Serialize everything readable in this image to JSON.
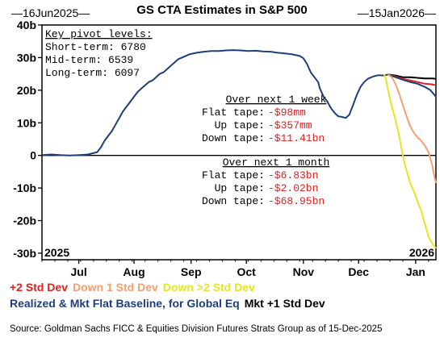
{
  "chart_data": {
    "type": "line",
    "title": "GS CTA Estimates in S&P 500",
    "start_label": "—16Jun2025—",
    "end_label": "—15Jan2026—",
    "ylim": [
      -32,
      40
    ],
    "y_ticks": [
      {
        "value": 40,
        "label": "40b"
      },
      {
        "value": 30,
        "label": "30b"
      },
      {
        "value": 20,
        "label": "20b"
      },
      {
        "value": 10,
        "label": "10b"
      },
      {
        "value": 0,
        "label": "0"
      },
      {
        "value": -10,
        "label": "-10b"
      },
      {
        "value": -20,
        "label": "-20b"
      },
      {
        "value": -30,
        "label": "-30b"
      }
    ],
    "x_ticks": [
      {
        "t": 20,
        "label": "Jul"
      },
      {
        "t": 50,
        "label": "Aug"
      },
      {
        "t": 81,
        "label": "Sep"
      },
      {
        "t": 111,
        "label": "Oct"
      },
      {
        "t": 142,
        "label": "Nov"
      },
      {
        "t": 172,
        "label": "Dec"
      },
      {
        "t": 203,
        "label": "Jan"
      }
    ],
    "year_start": "2025",
    "year_end": "2026",
    "grid": false,
    "series": [
      {
        "name": "Realized & Mkt Flat Baseline, for Global Eq",
        "color": "#1f3e7a",
        "points": [
          [
            0,
            0.1
          ],
          [
            5,
            0.3
          ],
          [
            10,
            0.1
          ],
          [
            15,
            0.0
          ],
          [
            20,
            0.1
          ],
          [
            25,
            0.3
          ],
          [
            30,
            1.0
          ],
          [
            32,
            2.5
          ],
          [
            34,
            4.5
          ],
          [
            36,
            6.0
          ],
          [
            38,
            7.5
          ],
          [
            40,
            9.5
          ],
          [
            42,
            11.5
          ],
          [
            44,
            13.5
          ],
          [
            46,
            15.0
          ],
          [
            48,
            16.5
          ],
          [
            50,
            18.0
          ],
          [
            52,
            19.5
          ],
          [
            54,
            20.5
          ],
          [
            56,
            21.5
          ],
          [
            58,
            22.5
          ],
          [
            60,
            23.0
          ],
          [
            62,
            24.0
          ],
          [
            64,
            25.0
          ],
          [
            66,
            25.5
          ],
          [
            68,
            26.5
          ],
          [
            70,
            27.5
          ],
          [
            72,
            28.5
          ],
          [
            74,
            29.5
          ],
          [
            76,
            30.0
          ],
          [
            78,
            30.5
          ],
          [
            80,
            31.0
          ],
          [
            84,
            31.5
          ],
          [
            88,
            31.8
          ],
          [
            92,
            32.0
          ],
          [
            96,
            32.0
          ],
          [
            100,
            32.2
          ],
          [
            104,
            32.3
          ],
          [
            108,
            32.2
          ],
          [
            112,
            32.0
          ],
          [
            116,
            32.1
          ],
          [
            120,
            31.9
          ],
          [
            124,
            31.8
          ],
          [
            128,
            31.5
          ],
          [
            132,
            31.3
          ],
          [
            136,
            31.0
          ],
          [
            140,
            30.5
          ],
          [
            142,
            29.8
          ],
          [
            144,
            28.0
          ],
          [
            146,
            25.5
          ],
          [
            148,
            24.0
          ],
          [
            150,
            22.5
          ],
          [
            151,
            20.5
          ],
          [
            153,
            18.0
          ],
          [
            155,
            16.5
          ],
          [
            157,
            14.5
          ],
          [
            159,
            13.0
          ],
          [
            161,
            12.0
          ],
          [
            163,
            11.8
          ],
          [
            165,
            11.5
          ],
          [
            167,
            12.5
          ],
          [
            169,
            15.5
          ],
          [
            171,
            18.5
          ],
          [
            173,
            21.0
          ],
          [
            175,
            22.5
          ],
          [
            177,
            23.5
          ],
          [
            179,
            24.0
          ],
          [
            181,
            24.4
          ],
          [
            183,
            24.6
          ],
          [
            186,
            24.5
          ],
          [
            188,
            24.8
          ]
        ]
      },
      {
        "name": "Mkt +1 Std Dev",
        "color": "#000000",
        "points": [
          [
            188,
            24.8
          ],
          [
            192,
            24.5
          ],
          [
            196,
            24.0
          ],
          [
            200,
            24.0
          ],
          [
            204,
            23.8
          ],
          [
            208,
            23.6
          ],
          [
            212,
            23.6
          ],
          [
            214,
            23.5
          ]
        ]
      },
      {
        "name": "+2 Std Dev",
        "color": "#e02020",
        "points": [
          [
            188,
            24.8
          ],
          [
            192,
            24.2
          ],
          [
            196,
            23.5
          ],
          [
            200,
            23.0
          ],
          [
            204,
            22.5
          ],
          [
            208,
            22.0
          ],
          [
            212,
            21.8
          ],
          [
            214,
            21.5
          ]
        ]
      },
      {
        "name": "baseline-projection",
        "color": "#1f3e7a",
        "points": [
          [
            188,
            24.8
          ],
          [
            192,
            24.0
          ],
          [
            196,
            23.2
          ],
          [
            200,
            22.5
          ],
          [
            204,
            22.0
          ],
          [
            208,
            21.0
          ],
          [
            211,
            20.0
          ],
          [
            214,
            18.0
          ]
        ]
      },
      {
        "name": "Down 1 Std Dev",
        "color": "#f4a070",
        "points": [
          [
            188,
            24.8
          ],
          [
            190,
            24.0
          ],
          [
            192,
            22.0
          ],
          [
            194,
            19.0
          ],
          [
            196,
            15.5
          ],
          [
            198,
            12.0
          ],
          [
            200,
            9.0
          ],
          [
            202,
            7.0
          ],
          [
            204,
            5.5
          ],
          [
            206,
            4.5
          ],
          [
            208,
            3.0
          ],
          [
            210,
            1.0
          ],
          [
            212,
            -3.0
          ],
          [
            213,
            -6.0
          ],
          [
            214,
            -8.5
          ]
        ]
      },
      {
        "name": "Down >2 Std Dev",
        "color": "#e6e620",
        "points": [
          [
            186,
            24.8
          ],
          [
            187,
            23.0
          ],
          [
            188,
            20.0
          ],
          [
            189,
            17.5
          ],
          [
            190,
            15.0
          ],
          [
            191,
            13.0
          ],
          [
            192,
            11.0
          ],
          [
            193,
            8.5
          ],
          [
            194,
            6.0
          ],
          [
            195,
            3.0
          ],
          [
            196,
            0.0
          ],
          [
            197,
            -2.5
          ],
          [
            198,
            -4.5
          ],
          [
            199,
            -6.5
          ],
          [
            200,
            -8.5
          ],
          [
            202,
            -11.0
          ],
          [
            204,
            -14.0
          ],
          [
            206,
            -17.0
          ],
          [
            208,
            -21.0
          ],
          [
            210,
            -25.0
          ],
          [
            212,
            -27.0
          ],
          [
            214,
            -28.5
          ]
        ]
      }
    ],
    "key_pivots": {
      "heading": "Key pivot levels:",
      "rows": [
        "Short-term: 6780",
        "Mid-term: 6539",
        "Long-term: 6097"
      ]
    },
    "week_box": {
      "heading": "Over next 1 week",
      "rows": [
        {
          "label": "Flat tape:",
          "value": "-$98mm"
        },
        {
          "label": "Up tape:",
          "value": "-$357mm"
        },
        {
          "label": "Down tape:",
          "value": "-$11.41bn"
        }
      ]
    },
    "month_box": {
      "heading": "Over next 1 month",
      "rows": [
        {
          "label": "Flat tape:",
          "value": "-$6.83bn"
        },
        {
          "label": "Up tape:",
          "value": "-$2.02bn"
        },
        {
          "label": "Down tape:",
          "value": "-$68.95bn"
        }
      ]
    }
  },
  "legend": {
    "row1": [
      {
        "label": "+2 Std Dev",
        "color": "#e02020"
      },
      {
        "label": "Down 1 Std Dev",
        "color": "#f4a070"
      },
      {
        "label": "Down >2 Std Dev",
        "color": "#e6e620"
      }
    ],
    "row2": [
      {
        "label": "Realized & Mkt Flat Baseline, for Global Eq",
        "color": "#1f3e7a"
      },
      {
        "label": "Mkt +1 Std Dev",
        "color": "#000000"
      }
    ]
  },
  "colors": {
    "value_red": "#e02020"
  },
  "source": "Source: Goldman Sachs FICC & Equities Division Futures Strats Group as of 15-Dec-2025"
}
